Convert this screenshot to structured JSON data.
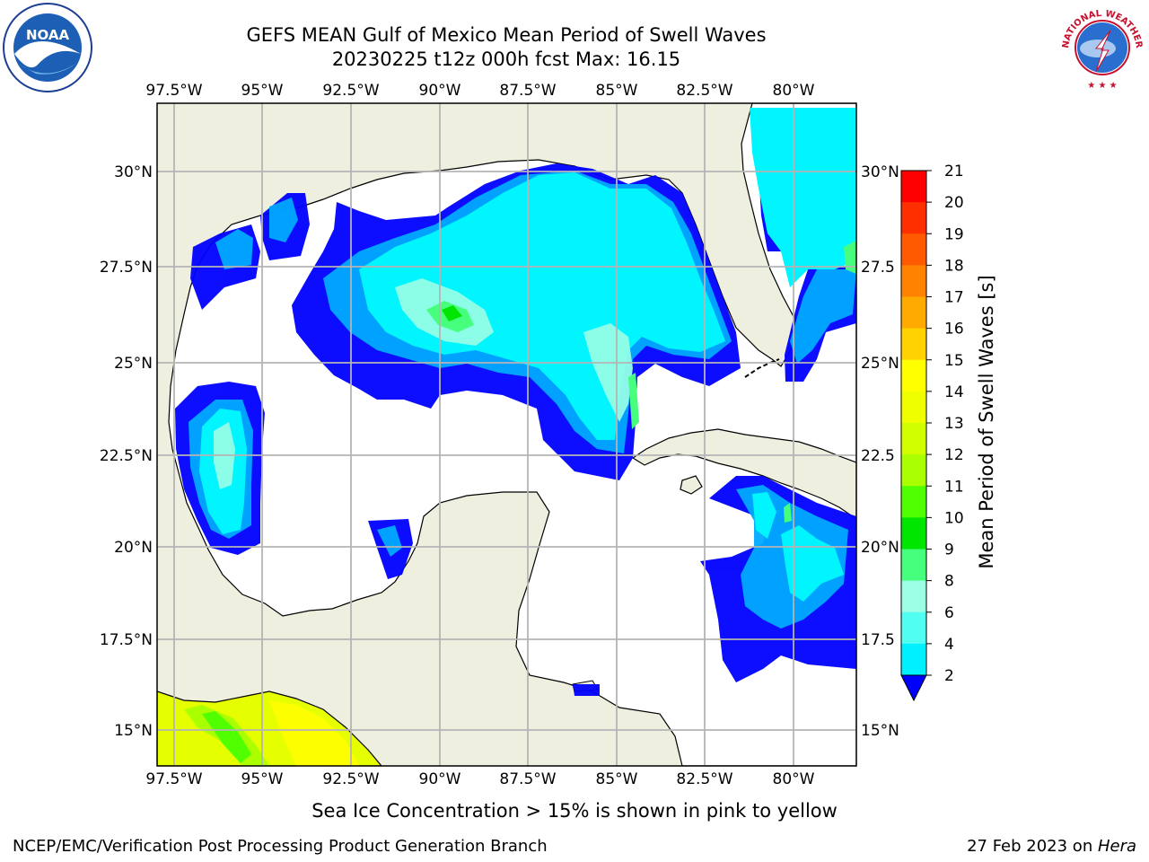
{
  "header": {
    "title": "GEFS MEAN Gulf of Mexico Mean Period of Swell Waves",
    "subtitle": "20230225 t12z 000h fcst   Max: 16.15"
  },
  "logos": {
    "noaa_text": "NOAA",
    "nws_text": "NATIONAL WEATHER SERVICE"
  },
  "map": {
    "lon_labels": [
      "97.5°W",
      "95°W",
      "92.5°W",
      "90°W",
      "87.5°W",
      "85°W",
      "82.5°W",
      "80°W"
    ],
    "lon_values": [
      -97.5,
      -95,
      -92.5,
      -90,
      -87.5,
      -85,
      -82.5,
      -80
    ],
    "lat_labels_left": [
      "30°N",
      "27.5°N",
      "25°N",
      "22.5°N",
      "20°N",
      "17.5°N",
      "15°N"
    ],
    "lat_labels_right": [
      "30°N",
      "27.5",
      "25°N",
      "22.5",
      "20°N",
      "17.5",
      "15°N"
    ],
    "lat_values": [
      30,
      27.5,
      25,
      22.5,
      20,
      17.5,
      15
    ],
    "lon_range": [
      -98,
      -78.2
    ],
    "lat_range": [
      14,
      31.8
    ],
    "land_color": "#efefdf",
    "ocean_color": "#ffffff",
    "grid": true
  },
  "colorbar": {
    "label": "Mean Period of Swell Waves [s]",
    "ticks": [
      "21",
      "20",
      "19",
      "18",
      "17",
      "16",
      "15",
      "14",
      "13",
      "12",
      "11",
      "10",
      "9",
      "8",
      "6",
      "4",
      "2"
    ],
    "colors": [
      "#ff0000",
      "#ff3000",
      "#ff5a00",
      "#ff8200",
      "#ffaa00",
      "#ffd200",
      "#ffff00",
      "#f0ff00",
      "#d2ff00",
      "#aaff00",
      "#50ff00",
      "#00e600",
      "#46ff7d",
      "#9bffe6",
      "#50fff0",
      "#00f0ff",
      "#0078ff",
      "#0000ff"
    ]
  },
  "footer": {
    "note": "Sea Ice Concentration > 15% is shown in pink to yellow",
    "credit": "NCEP/EMC/Verification Post Processing Product Generation Branch",
    "date_prefix": "27 Feb 2023 on ",
    "date_host": "Hera"
  }
}
